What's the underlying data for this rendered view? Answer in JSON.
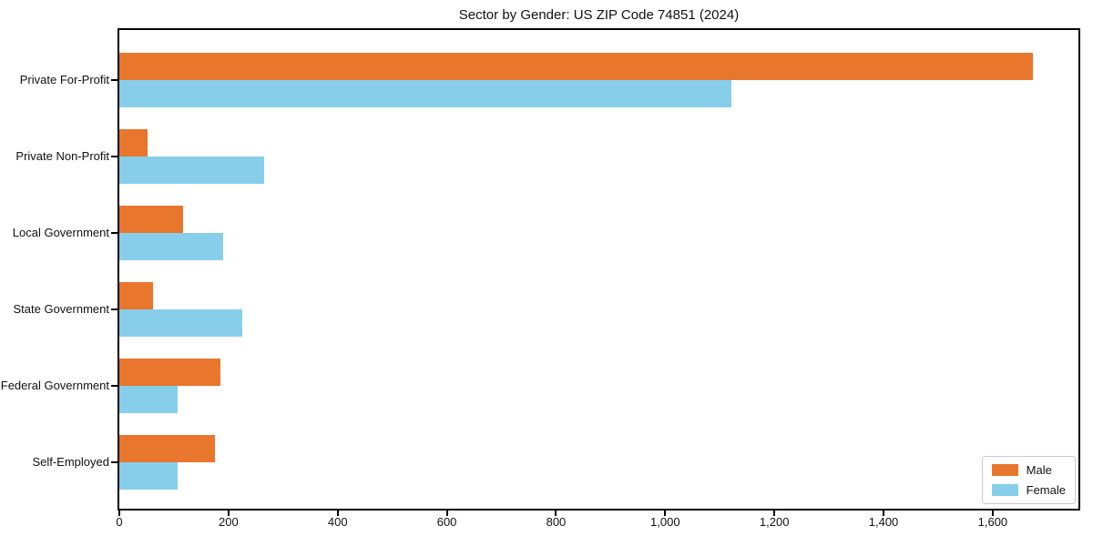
{
  "title": "Sector by Gender: US ZIP Code 74851 (2024)",
  "chart_data": {
    "type": "bar",
    "orientation": "horizontal",
    "title": "Sector by Gender: US ZIP Code 74851 (2024)",
    "xlabel": "",
    "ylabel": "",
    "categories": [
      "Private For-Profit",
      "Private Non-Profit",
      "Local Government",
      "State Government",
      "Federal Government",
      "Self-Employed"
    ],
    "series": [
      {
        "name": "Male",
        "color": "#E8762D",
        "values": [
          1673,
          51,
          117,
          61,
          186,
          175
        ]
      },
      {
        "name": "Female",
        "color": "#87CEEB",
        "values": [
          1122,
          266,
          190,
          225,
          107,
          107
        ]
      }
    ],
    "xlim": [
      0,
      1757
    ],
    "xticks": [
      0,
      200,
      400,
      600,
      800,
      1000,
      1200,
      1400,
      1600
    ],
    "xtick_labels": [
      "0",
      "200",
      "400",
      "600",
      "800",
      "1,000",
      "1,200",
      "1,400",
      "1,600"
    ],
    "grid": false,
    "legend_position": "lower right",
    "background": "#ffffff",
    "spine_color": "#000000"
  }
}
